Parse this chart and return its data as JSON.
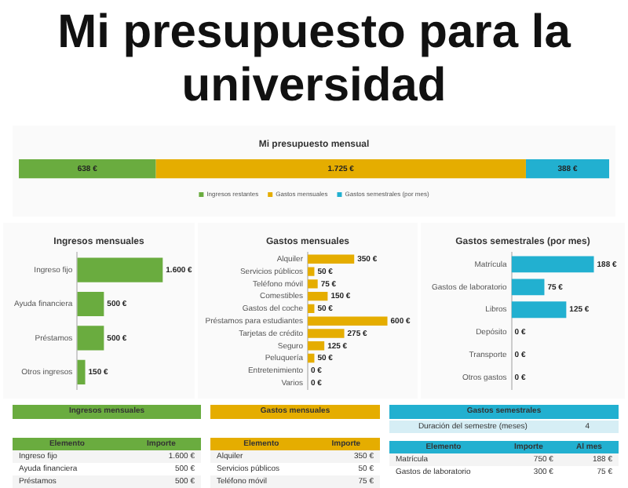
{
  "chart_data": [
    {
      "type": "bar",
      "title": "Mi presupuesto para la universidad",
      "subtitle": "Mi presupuesto mensual",
      "orientation": "horizontal",
      "stacked": true,
      "categories": [
        null
      ],
      "tick_labels": false,
      "legend": "bottom",
      "series": [
        {
          "name": "Ingresos restantes",
          "color": "#6aac3f",
          "values": [
            638
          ],
          "value_labels": [
            "638 €"
          ]
        },
        {
          "name": "Gastos mensuales",
          "color": "#e5ad00",
          "values": [
            1725
          ],
          "value_labels": [
            "1.725 €"
          ]
        },
        {
          "name": "Gastos semestrales (por mes)",
          "color": "#22b0d0",
          "values": [
            388
          ],
          "value_labels": [
            "388 €"
          ]
        }
      ]
    },
    {
      "type": "bar",
      "title": "Ingresos mensuales",
      "orientation": "horizontal",
      "tick_labels": "y",
      "categories": [
        "Ingreso fijo",
        "Ayuda financiera",
        "Préstamos",
        "Otros ingresos"
      ],
      "color": "#6aac3f",
      "values": [
        1600,
        500,
        500,
        150
      ],
      "value_labels": [
        "1.600 €",
        "500 €",
        "500 €",
        "150 €"
      ]
    },
    {
      "type": "bar",
      "title": "Gastos mensuales",
      "orientation": "horizontal",
      "tick_labels": "y",
      "categories": [
        "Alquiler",
        "Servicios públicos",
        "Teléfono móvil",
        "Comestibles",
        "Gastos del coche",
        "Préstamos para estudiantes",
        "Tarjetas de crédito",
        "Seguro",
        "Peluquería",
        "Entretenimiento",
        "Varios"
      ],
      "color": "#e5ad00",
      "values": [
        350,
        50,
        75,
        150,
        50,
        600,
        275,
        125,
        50,
        0,
        0
      ],
      "value_labels": [
        "350 €",
        "50 €",
        "75 €",
        "150 €",
        "50 €",
        "600 €",
        "275 €",
        "125 €",
        "50 €",
        "0 €",
        "0 €"
      ]
    },
    {
      "type": "bar",
      "title": "Gastos semestrales (por mes)",
      "orientation": "horizontal",
      "tick_labels": "y",
      "categories": [
        "Matrícula",
        "Gastos de laboratorio",
        "Libros",
        "Depósito",
        "Transporte",
        "Otros gastos"
      ],
      "color": "#22b0d0",
      "values": [
        188,
        75,
        125,
        0,
        0,
        0
      ],
      "value_labels": [
        "188 €",
        "75 €",
        "125 €",
        "0 €",
        "0 €",
        "0 €"
      ]
    },
    {
      "type": "other",
      "title": "Ingresos mensuales",
      "color": "#6aac3f",
      "categories": [
        "Elemento",
        "Importe"
      ],
      "annotations": [
        "Ingreso fijo",
        "1.600 €",
        "Ayuda financiera",
        "500 €",
        "Préstamos",
        "500 €"
      ]
    },
    {
      "type": "other",
      "title": "Gastos mensuales",
      "color": "#e5ad00",
      "categories": [
        "Elemento",
        "Importe"
      ],
      "annotations": [
        "Alquiler",
        "350 €",
        "Servicios públicos",
        "50 €",
        "Teléfono móvil",
        "75 €"
      ]
    },
    {
      "type": "other",
      "title": "Gastos semestrales",
      "color": "#22b0d0",
      "annotations": [
        "Duración del semestre (meses)",
        "4"
      ]
    },
    {
      "type": "other",
      "color": "#22b0d0",
      "categories": [
        "Elemento",
        "Importe",
        "Al mes"
      ],
      "annotations": [
        "Matrícula",
        "750 €",
        "188 €",
        "Gastos de laboratorio",
        "300 €",
        "75 €"
      ]
    }
  ]
}
